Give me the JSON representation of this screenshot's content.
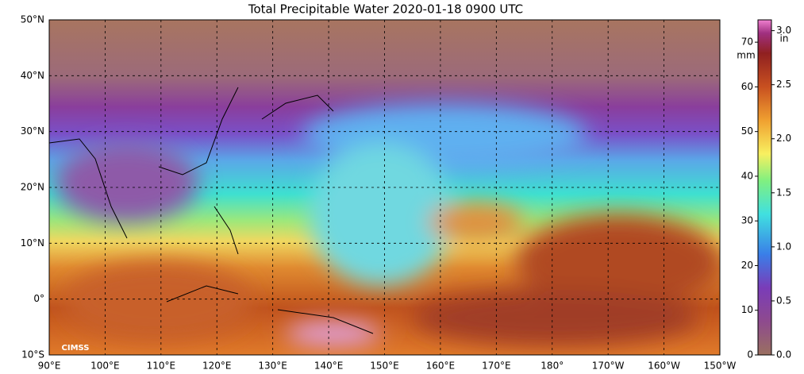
{
  "title": "Total Precipitable Water  2020-01-18 0900 UTC",
  "map": {
    "lonlim": [
      90,
      210
    ],
    "latlim": [
      -10,
      50
    ],
    "lon_ticks": [
      {
        "value": 90,
        "label": "90°E"
      },
      {
        "value": 100,
        "label": "100°E"
      },
      {
        "value": 110,
        "label": "110°E"
      },
      {
        "value": 120,
        "label": "120°E"
      },
      {
        "value": 130,
        "label": "130°E"
      },
      {
        "value": 140,
        "label": "140°E"
      },
      {
        "value": 150,
        "label": "150°E"
      },
      {
        "value": 160,
        "label": "160°E"
      },
      {
        "value": 170,
        "label": "170°E"
      },
      {
        "value": 180,
        "label": "180°"
      },
      {
        "value": 190,
        "label": "170°W"
      },
      {
        "value": 200,
        "label": "160°W"
      },
      {
        "value": 210,
        "label": "150°W"
      }
    ],
    "lat_ticks": [
      {
        "value": 50,
        "label": "50°N"
      },
      {
        "value": 40,
        "label": "40°N"
      },
      {
        "value": 30,
        "label": "30°N"
      },
      {
        "value": 20,
        "label": "20°N"
      },
      {
        "value": 10,
        "label": "10°N"
      },
      {
        "value": 0,
        "label": "0°"
      },
      {
        "value": -10,
        "label": "10°S"
      }
    ]
  },
  "colorbar": {
    "mm_unit": "mm",
    "mm_lim": [
      0,
      75
    ],
    "mm_ticks": [
      0,
      10,
      20,
      30,
      40,
      50,
      60,
      70
    ],
    "in_unit": "in",
    "in_lim": [
      0,
      3.1
    ],
    "in_ticks": [
      {
        "value": 0,
        "label": "0.0"
      },
      {
        "value": 0.5,
        "label": "0.5"
      },
      {
        "value": 1,
        "label": "1.0"
      },
      {
        "value": 1.5,
        "label": "1.5"
      },
      {
        "value": 2,
        "label": "2.0"
      },
      {
        "value": 2.5,
        "label": "2.5"
      },
      {
        "value": 3,
        "label": "3.0"
      }
    ]
  },
  "logo": "CIMSS"
}
